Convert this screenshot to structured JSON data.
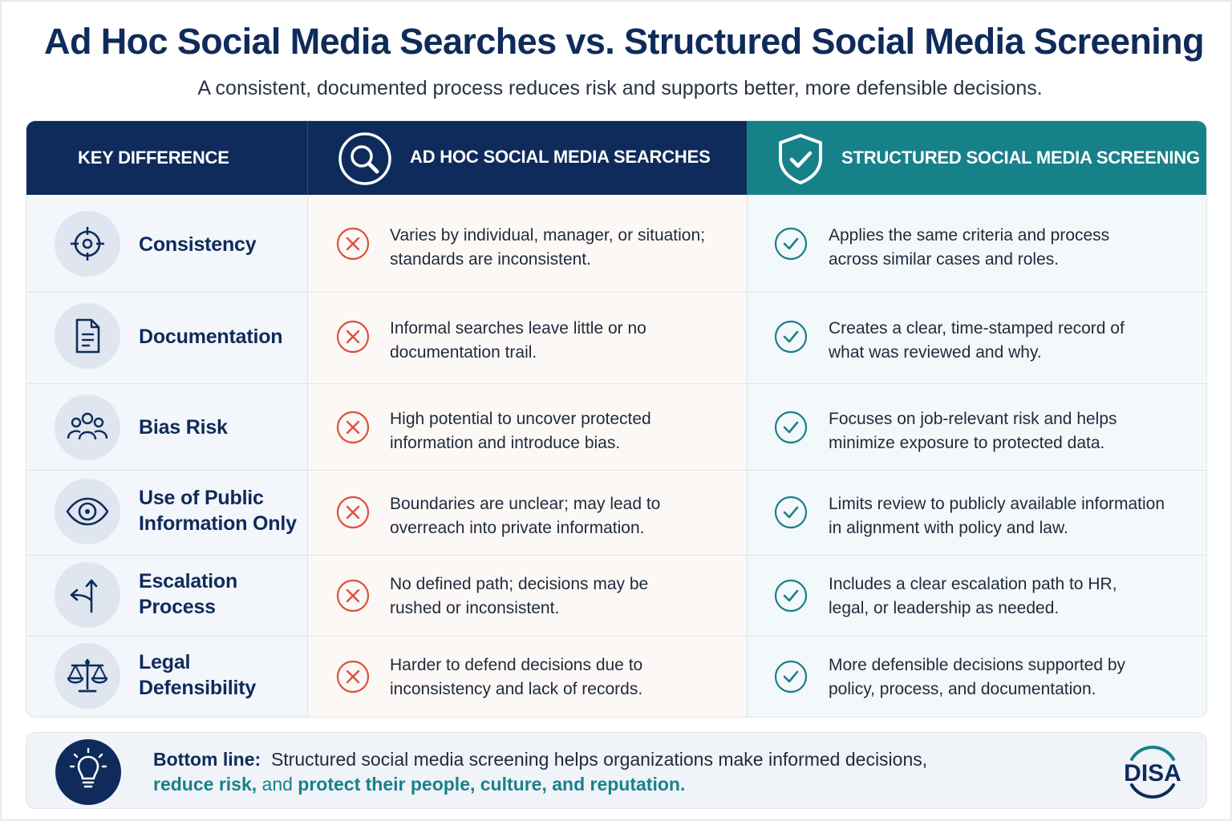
{
  "title": "Ad Hoc Social Media Searches vs. Structured Social Media Screening",
  "subtitle": "A consistent, documented process reduces risk and supports better, more defensible decisions.",
  "header": {
    "key": "KEY DIFFERENCE",
    "adhoc": "AD HOC SOCIAL MEDIA SEARCHES",
    "structured": "STRUCTURED SOCIAL MEDIA SCREENING",
    "adhoc_icon": "magnifier-icon",
    "structured_icon": "shield-check-icon"
  },
  "rows": [
    {
      "icon": "target-icon",
      "label_lines": [
        "Consistency"
      ],
      "adhoc_lines": [
        "Varies by individual, manager, or situation;",
        "standards are inconsistent."
      ],
      "structured_lines": [
        "Applies the same criteria and process",
        "across similar cases and roles."
      ]
    },
    {
      "icon": "document-icon",
      "label_lines": [
        "Documentation"
      ],
      "adhoc_lines": [
        "Informal searches leave little or no",
        "documentation trail."
      ],
      "structured_lines": [
        "Creates a clear, time-stamped record of",
        "what was reviewed and why."
      ]
    },
    {
      "icon": "people-icon",
      "label_lines": [
        "Bias Risk"
      ],
      "adhoc_lines": [
        "High potential to uncover protected",
        "information and introduce bias."
      ],
      "structured_lines": [
        "Focuses on job-relevant risk and helps",
        "minimize exposure to protected data."
      ]
    },
    {
      "icon": "eye-icon",
      "label_lines": [
        "Use of Public",
        "Information Only"
      ],
      "adhoc_lines": [
        "Boundaries are unclear; may lead to",
        "overreach into private information."
      ],
      "structured_lines": [
        "Limits review to publicly available information",
        "in alignment with policy and law."
      ]
    },
    {
      "icon": "split-arrows-icon",
      "label_lines": [
        "Escalation",
        "Process"
      ],
      "adhoc_lines": [
        "No defined path; decisions may be",
        "rushed or inconsistent."
      ],
      "structured_lines": [
        "Includes a clear escalation path to HR,",
        "legal, or leadership as needed."
      ]
    },
    {
      "icon": "scales-icon",
      "label_lines": [
        "Legal",
        "Defensibility"
      ],
      "adhoc_lines": [
        "Harder to defend decisions due to",
        "inconsistency and lack of records."
      ],
      "structured_lines": [
        "More defensible decisions supported by",
        "policy, process, and documentation."
      ]
    }
  ],
  "bottom": {
    "label": "Bottom line:",
    "text1": "Structured social media screening helps organizations make informed decisions,",
    "text2a": "reduce risk,",
    "text2b": "and",
    "text2c": "protect their people, culture, and reputation.",
    "icon": "lightbulb-icon"
  },
  "logo": {
    "text": "DISA"
  },
  "colors": {
    "navy": "#0f2b5b",
    "teal": "#17818a",
    "cross": "#e0503a"
  }
}
